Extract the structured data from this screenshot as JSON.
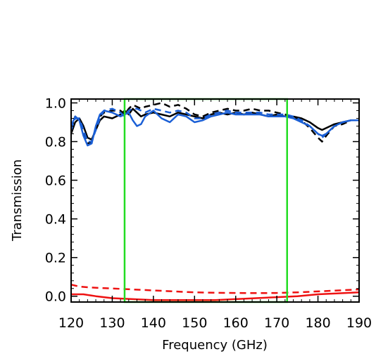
{
  "chart_data": {
    "type": "line",
    "title": "",
    "xlabel": "Frequency (GHz)",
    "ylabel": "Transmission",
    "xlim": [
      120,
      190
    ],
    "ylim": [
      -0.03,
      1.02
    ],
    "x_ticks": [
      120,
      130,
      140,
      150,
      160,
      170,
      180,
      190
    ],
    "x_tick_labels": [
      "120",
      "130",
      "140",
      "150",
      "160",
      "170",
      "180",
      "190"
    ],
    "y_ticks": [
      0.0,
      0.2,
      0.4,
      0.6,
      0.8,
      1.0
    ],
    "y_tick_labels": [
      "0.0",
      "0.2",
      "0.4",
      "0.6",
      "0.8",
      "1.0"
    ],
    "band_box": {
      "x": [
        133,
        172.5
      ],
      "y": [
        -0.03,
        1.02
      ],
      "color": "#22dd22"
    },
    "series": [
      {
        "color": "#000000",
        "dash": "solid",
        "x": [
          120,
          121,
          122,
          123,
          124,
          125,
          126,
          127,
          128,
          130,
          132,
          133,
          134,
          135,
          136,
          137,
          138,
          140,
          142,
          144,
          146,
          148,
          150,
          152,
          154,
          156,
          158,
          160,
          162,
          164,
          166,
          168,
          170,
          172,
          174,
          176,
          178,
          180,
          181,
          182,
          184,
          186,
          188,
          190
        ],
        "y": [
          0.84,
          0.9,
          0.92,
          0.88,
          0.82,
          0.81,
          0.86,
          0.91,
          0.93,
          0.92,
          0.94,
          0.96,
          0.94,
          0.97,
          0.95,
          0.93,
          0.94,
          0.95,
          0.94,
          0.93,
          0.95,
          0.94,
          0.93,
          0.92,
          0.94,
          0.95,
          0.94,
          0.95,
          0.94,
          0.95,
          0.94,
          0.93,
          0.94,
          0.93,
          0.93,
          0.92,
          0.9,
          0.87,
          0.86,
          0.87,
          0.89,
          0.9,
          0.91,
          0.91
        ]
      },
      {
        "color": "#000000",
        "dash": "dashed",
        "x": [
          120,
          121,
          122,
          123,
          124,
          125,
          126,
          127,
          128,
          130,
          132,
          133,
          134,
          135,
          136,
          137,
          138,
          140,
          142,
          144,
          146,
          148,
          150,
          152,
          154,
          156,
          158,
          160,
          162,
          164,
          166,
          168,
          170,
          172,
          174,
          176,
          178,
          180,
          181,
          182,
          184,
          186,
          188,
          190
        ],
        "y": [
          0.87,
          0.93,
          0.91,
          0.85,
          0.79,
          0.8,
          0.87,
          0.93,
          0.95,
          0.96,
          0.96,
          0.94,
          0.97,
          0.99,
          0.98,
          0.97,
          0.98,
          0.99,
          1.0,
          0.98,
          0.99,
          0.97,
          0.94,
          0.93,
          0.95,
          0.96,
          0.97,
          0.96,
          0.96,
          0.97,
          0.96,
          0.96,
          0.95,
          0.94,
          0.93,
          0.91,
          0.87,
          0.82,
          0.8,
          0.83,
          0.88,
          0.89,
          0.91,
          0.91
        ]
      },
      {
        "color": "#1a5fd6",
        "dash": "solid",
        "x": [
          120,
          121,
          122,
          123,
          124,
          125,
          126,
          127,
          128,
          130,
          132,
          133,
          134,
          135,
          136,
          137,
          138,
          140,
          142,
          144,
          146,
          148,
          150,
          152,
          154,
          156,
          158,
          160,
          162,
          164,
          166,
          168,
          170,
          172,
          174,
          176,
          178,
          180,
          181,
          182,
          184,
          186,
          188,
          190
        ],
        "y": [
          0.88,
          0.93,
          0.91,
          0.83,
          0.78,
          0.79,
          0.88,
          0.94,
          0.96,
          0.95,
          0.93,
          0.94,
          0.95,
          0.91,
          0.88,
          0.89,
          0.93,
          0.96,
          0.92,
          0.9,
          0.94,
          0.93,
          0.9,
          0.91,
          0.93,
          0.94,
          0.95,
          0.94,
          0.94,
          0.94,
          0.94,
          0.93,
          0.93,
          0.93,
          0.92,
          0.9,
          0.88,
          0.84,
          0.83,
          0.84,
          0.88,
          0.9,
          0.91,
          0.91
        ]
      },
      {
        "color": "#1a5fd6",
        "dash": "dashed",
        "x": [
          120,
          121,
          122,
          123,
          124,
          125,
          126,
          127,
          128,
          130,
          132,
          133,
          134,
          135,
          136,
          137,
          138,
          140,
          142,
          144,
          146,
          148,
          150,
          152,
          154,
          156,
          158,
          160,
          162,
          164,
          166,
          168,
          170,
          172,
          174,
          176,
          178,
          180,
          181,
          182,
          184,
          186,
          188,
          190
        ],
        "y": [
          0.86,
          0.92,
          0.92,
          0.86,
          0.8,
          0.8,
          0.86,
          0.92,
          0.96,
          0.97,
          0.95,
          0.93,
          0.96,
          0.97,
          0.97,
          0.96,
          0.95,
          0.97,
          0.96,
          0.95,
          0.96,
          0.95,
          0.92,
          0.92,
          0.94,
          0.95,
          0.96,
          0.95,
          0.95,
          0.95,
          0.95,
          0.94,
          0.94,
          0.94,
          0.93,
          0.91,
          0.88,
          0.84,
          0.82,
          0.84,
          0.88,
          0.9,
          0.91,
          0.91
        ]
      },
      {
        "color": "#ee1111",
        "dash": "solid",
        "x": [
          120,
          123,
          126,
          130,
          135,
          140,
          145,
          150,
          155,
          160,
          165,
          170,
          175,
          180,
          185,
          190
        ],
        "y": [
          0.01,
          0.01,
          0.0,
          -0.01,
          -0.015,
          -0.02,
          -0.02,
          -0.02,
          -0.02,
          -0.015,
          -0.01,
          -0.005,
          0.0,
          0.01,
          0.015,
          0.02
        ]
      },
      {
        "color": "#ee1111",
        "dash": "dashed",
        "x": [
          120,
          122,
          125,
          130,
          135,
          140,
          145,
          150,
          155,
          160,
          165,
          170,
          175,
          180,
          185,
          190
        ],
        "y": [
          0.06,
          0.05,
          0.045,
          0.04,
          0.035,
          0.03,
          0.025,
          0.02,
          0.018,
          0.017,
          0.016,
          0.017,
          0.02,
          0.025,
          0.03,
          0.035
        ]
      }
    ]
  }
}
